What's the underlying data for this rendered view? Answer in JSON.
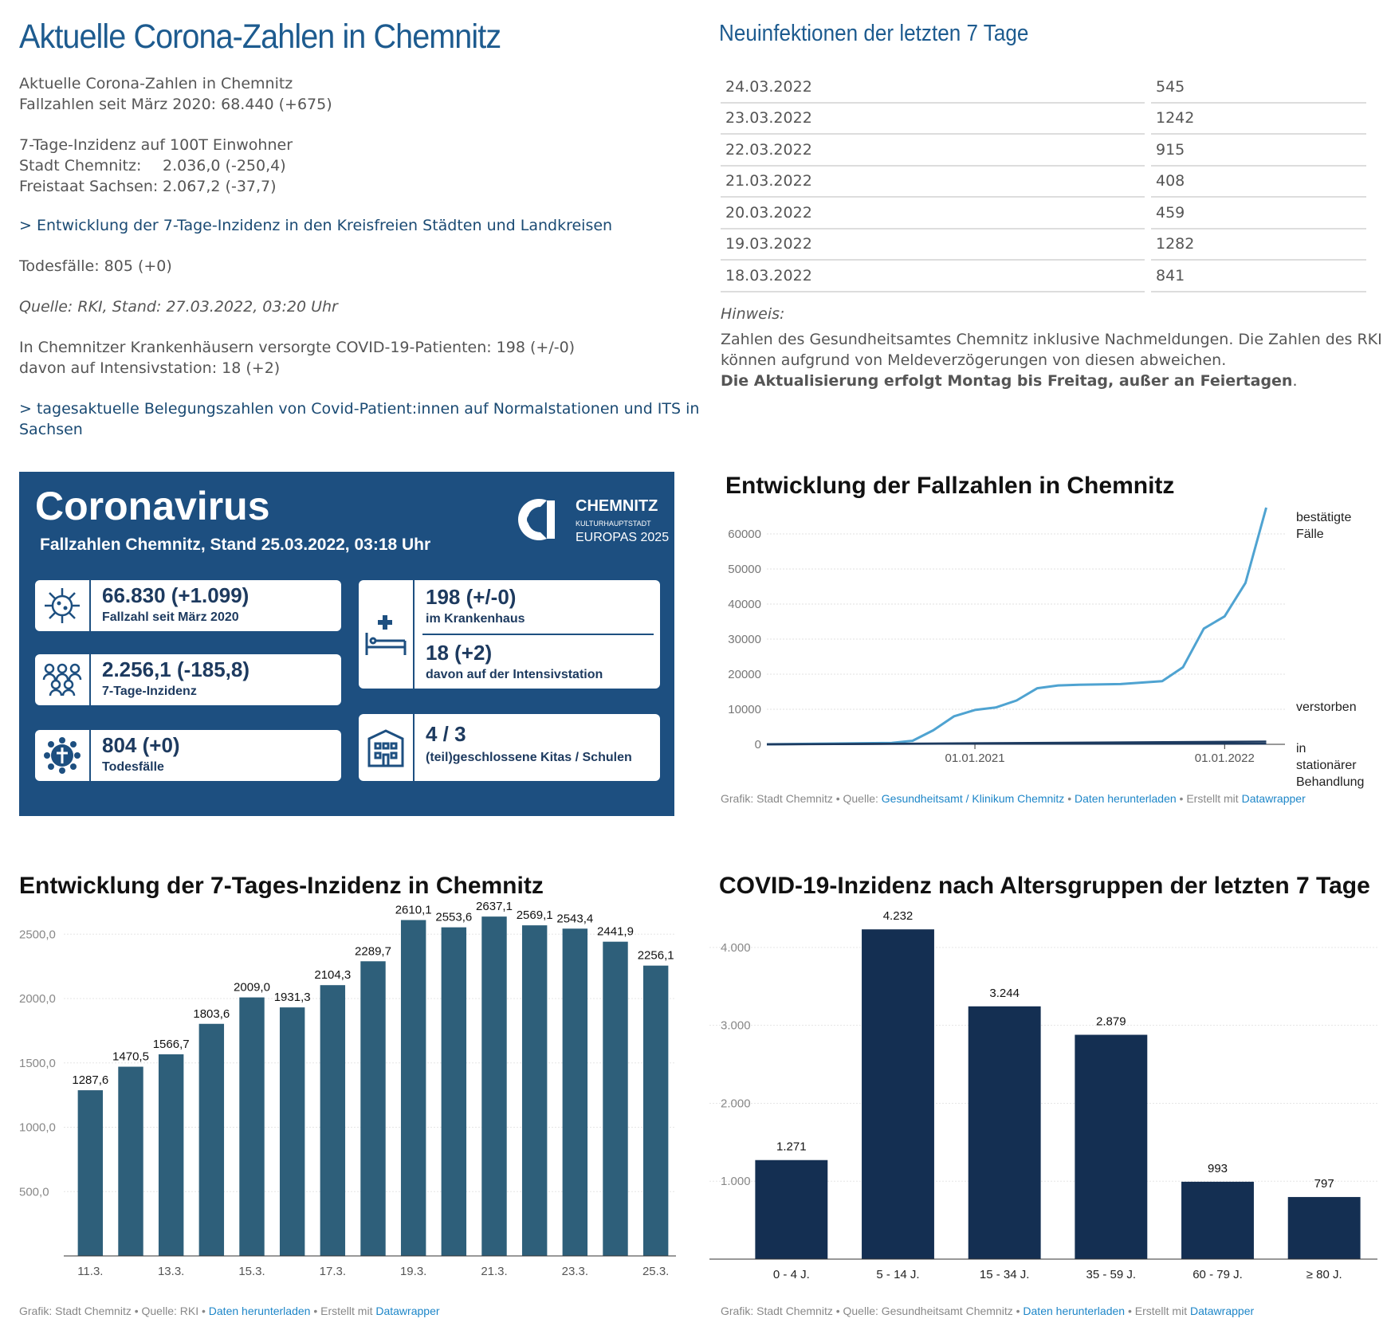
{
  "left": {
    "title": "Aktuelle Corona-Zahlen in Chemnitz",
    "line1": "Aktuelle Corona-Zahlen in Chemnitz",
    "line2": "Fallzahlen seit März 2020: 68.440 (+675)",
    "incidence_header": "7-Tage-Inzidenz auf 100T Einwohner",
    "stadt_label": "Stadt Chemnitz:",
    "stadt_value": "2.036,0 (-250,4)",
    "sachsen_label": "Freistaat Sachsen:",
    "sachsen_value": "2.067,2 (-37,7)",
    "link1": "> Entwicklung der 7-Tage-Inzidenz in den Kreisfreien Städten und Landkreisen",
    "deaths": "Todesfälle: 805 (+0)",
    "source": "Quelle: RKI, Stand: 27.03.2022, 03:20 Uhr",
    "hospital1": "In Chemnitzer Krankenhäusern versorgte COVID-19-Patienten: 198 (+/-0)",
    "hospital2": "davon auf Intensivstation: 18 (+2)",
    "link2a": ">  tagesaktuelle Belegungszahlen von Covid-Patient:innen auf Normalstationen und ITS in",
    "link2b": "Sachsen"
  },
  "right": {
    "title": "Neuinfektionen der letzten 7 Tage",
    "rows": [
      {
        "date": "24.03.2022",
        "value": "545"
      },
      {
        "date": "23.03.2022",
        "value": "1242"
      },
      {
        "date": "22.03.2022",
        "value": "915"
      },
      {
        "date": "21.03.2022",
        "value": "408"
      },
      {
        "date": "20.03.2022",
        "value": "459"
      },
      {
        "date": "19.03.2022",
        "value": "1282"
      },
      {
        "date": "18.03.2022",
        "value": "841"
      }
    ],
    "note_label": "Hinweis:",
    "note1": "Zahlen des Gesundheitsamtes Chemnitz inklusive Nachmeldungen. Die Zahlen des RKI",
    "note2": "können aufgrund von Meldeverzögerungen von diesen abweichen.",
    "note3": "Die Aktualisierung erfolgt Montag bis Freitag, außer an Feiertagen",
    "note3_end": "."
  },
  "infographic": {
    "title": "Coronavirus",
    "subtitle": "Fallzahlen Chemnitz, Stand 25.03.2022, 03:18 Uhr",
    "logo_line1": "CHEMNITZ",
    "logo_line2": "KULTURHAUPTSTADT",
    "logo_line3": "EUROPAS 2025",
    "cases_value": "66.830 (+1.099)",
    "cases_label": "Fallzahl seit März 2020",
    "incidence_value": "2.256,1 (-185,8)",
    "incidence_label": "7-Tage-Inzidenz",
    "deaths_value": "804 (+0)",
    "deaths_label": "Todesfälle",
    "hospital_value": "198 (+/-0)",
    "hospital_label": "im Krankenhaus",
    "icu_value": "18 (+2)",
    "icu_label": "davon auf der Intensivstation",
    "schools_value": "4 / 3",
    "schools_label": "(teil)geschlossene Kitas / Schulen",
    "bg_color": "#1d4f80"
  },
  "chart_cases": {
    "footer_prefix": "Grafik: Stadt Chemnitz • Quelle: ",
    "footer_source": "Gesundheitsamt / Klinikum Chemnitz",
    "footer_sep": " • ",
    "footer_download": "Daten herunterladen",
    "footer_mid": " • Erstellt mit ",
    "footer_tool": "Datawrapper"
  },
  "chart_incidence": {
    "footer_prefix": "Grafik: Stadt Chemnitz • Quelle: RKI • ",
    "footer_download": "Daten herunterladen",
    "footer_mid": " • Erstellt mit ",
    "footer_tool": "Datawrapper"
  },
  "chart_age": {
    "footer_prefix": "Grafik: Stadt Chemnitz • Quelle: Gesundheitsamt Chemnitz • ",
    "footer_download": "Daten herunterladen",
    "footer_mid": " • Erstellt mit ",
    "footer_tool": "Datawrapper"
  },
  "chart_data": [
    {
      "type": "line",
      "title": "Entwicklung der Fallzahlen in Chemnitz",
      "ylim": [
        0,
        60000
      ],
      "yticks": [
        "0",
        "10000",
        "20000",
        "30000",
        "40000",
        "50000",
        "60000"
      ],
      "xtick_labels": [
        "01.01.2021",
        "01.01.2022"
      ],
      "grid": true,
      "colors": {
        "bestaetigt": "#4fa3d1",
        "other": "#1d3a5f"
      },
      "series": [
        {
          "name": "bestätigte Fälle",
          "label_lines": [
            "bestätigte",
            "Fälle"
          ],
          "x": [
            "2020-03",
            "2020-06",
            "2020-09",
            "2020-10",
            "2020-11",
            "2020-12",
            "2021-01",
            "2021-02",
            "2021-03",
            "2021-04",
            "2021-05",
            "2021-06",
            "2021-08",
            "2021-10",
            "2021-11",
            "2021-12",
            "2022-01",
            "2022-02",
            "2022-03"
          ],
          "values": [
            0,
            200,
            400,
            1000,
            4000,
            8000,
            9800,
            10500,
            12500,
            16000,
            16800,
            17000,
            17200,
            18000,
            22000,
            33000,
            36500,
            46000,
            67500
          ]
        },
        {
          "name": "verstorben",
          "label_lines": [
            "verstorben"
          ],
          "x": [
            "2020-03",
            "2021-01",
            "2022-03"
          ],
          "values": [
            0,
            300,
            800
          ]
        },
        {
          "name": "in stationärer Behandlung",
          "label_lines": [
            "in",
            "stationärer",
            "Behandlung"
          ],
          "x": [
            "2020-03",
            "2021-01",
            "2022-03"
          ],
          "values": [
            0,
            200,
            200
          ]
        }
      ]
    },
    {
      "type": "bar",
      "title": "Entwicklung der 7-Tages-Inzidenz in Chemnitz",
      "categories": [
        "11.3.",
        "12.3.",
        "13.3.",
        "14.3.",
        "15.3.",
        "16.3.",
        "17.3.",
        "18.3.",
        "19.3.",
        "20.3.",
        "21.3.",
        "22.3.",
        "23.3.",
        "24.3.",
        "25.3."
      ],
      "xtick_labels": [
        "11.3.",
        "13.3.",
        "15.3.",
        "17.3.",
        "19.3.",
        "21.3.",
        "23.3.",
        "25.3."
      ],
      "values": [
        1287.6,
        1470.5,
        1566.7,
        1803.6,
        2009.0,
        1931.3,
        2104.3,
        2289.7,
        2610.1,
        2553.6,
        2637.1,
        2569.1,
        2543.4,
        2441.9,
        2256.1
      ],
      "labels": [
        "1287,6",
        "1470,5",
        "1566,7",
        "1803,6",
        "2009,0",
        "1931,3",
        "2104,3",
        "2289,7",
        "2610,1",
        "2553,6",
        "2637,1",
        "2569,1",
        "2543,4",
        "2441,9",
        "2256,1"
      ],
      "yticks": [
        500,
        1000,
        1500,
        2000,
        2500
      ],
      "ytick_labels": [
        "500,0",
        "1000,0",
        "1500,0",
        "2000,0",
        "2500,0"
      ],
      "ylim": [
        0,
        2700
      ],
      "color": "#2e5f7a"
    },
    {
      "type": "bar",
      "title": "COVID-19-Inzidenz nach Altersgruppen der letzten 7 Tage",
      "categories": [
        "0 - 4 J.",
        "5 - 14 J.",
        "15 - 34 J.",
        "35 - 59 J.",
        "60 - 79 J.",
        "≥ 80 J."
      ],
      "values": [
        1271,
        4232,
        3244,
        2879,
        993,
        797
      ],
      "labels": [
        "1.271",
        "4.232",
        "3.244",
        "2.879",
        "993",
        "797"
      ],
      "yticks": [
        1000,
        2000,
        3000,
        4000
      ],
      "ytick_labels": [
        "1.000",
        "2.000",
        "3.000",
        "4.000"
      ],
      "ylim": [
        0,
        4500
      ],
      "color": "#142f52"
    }
  ]
}
